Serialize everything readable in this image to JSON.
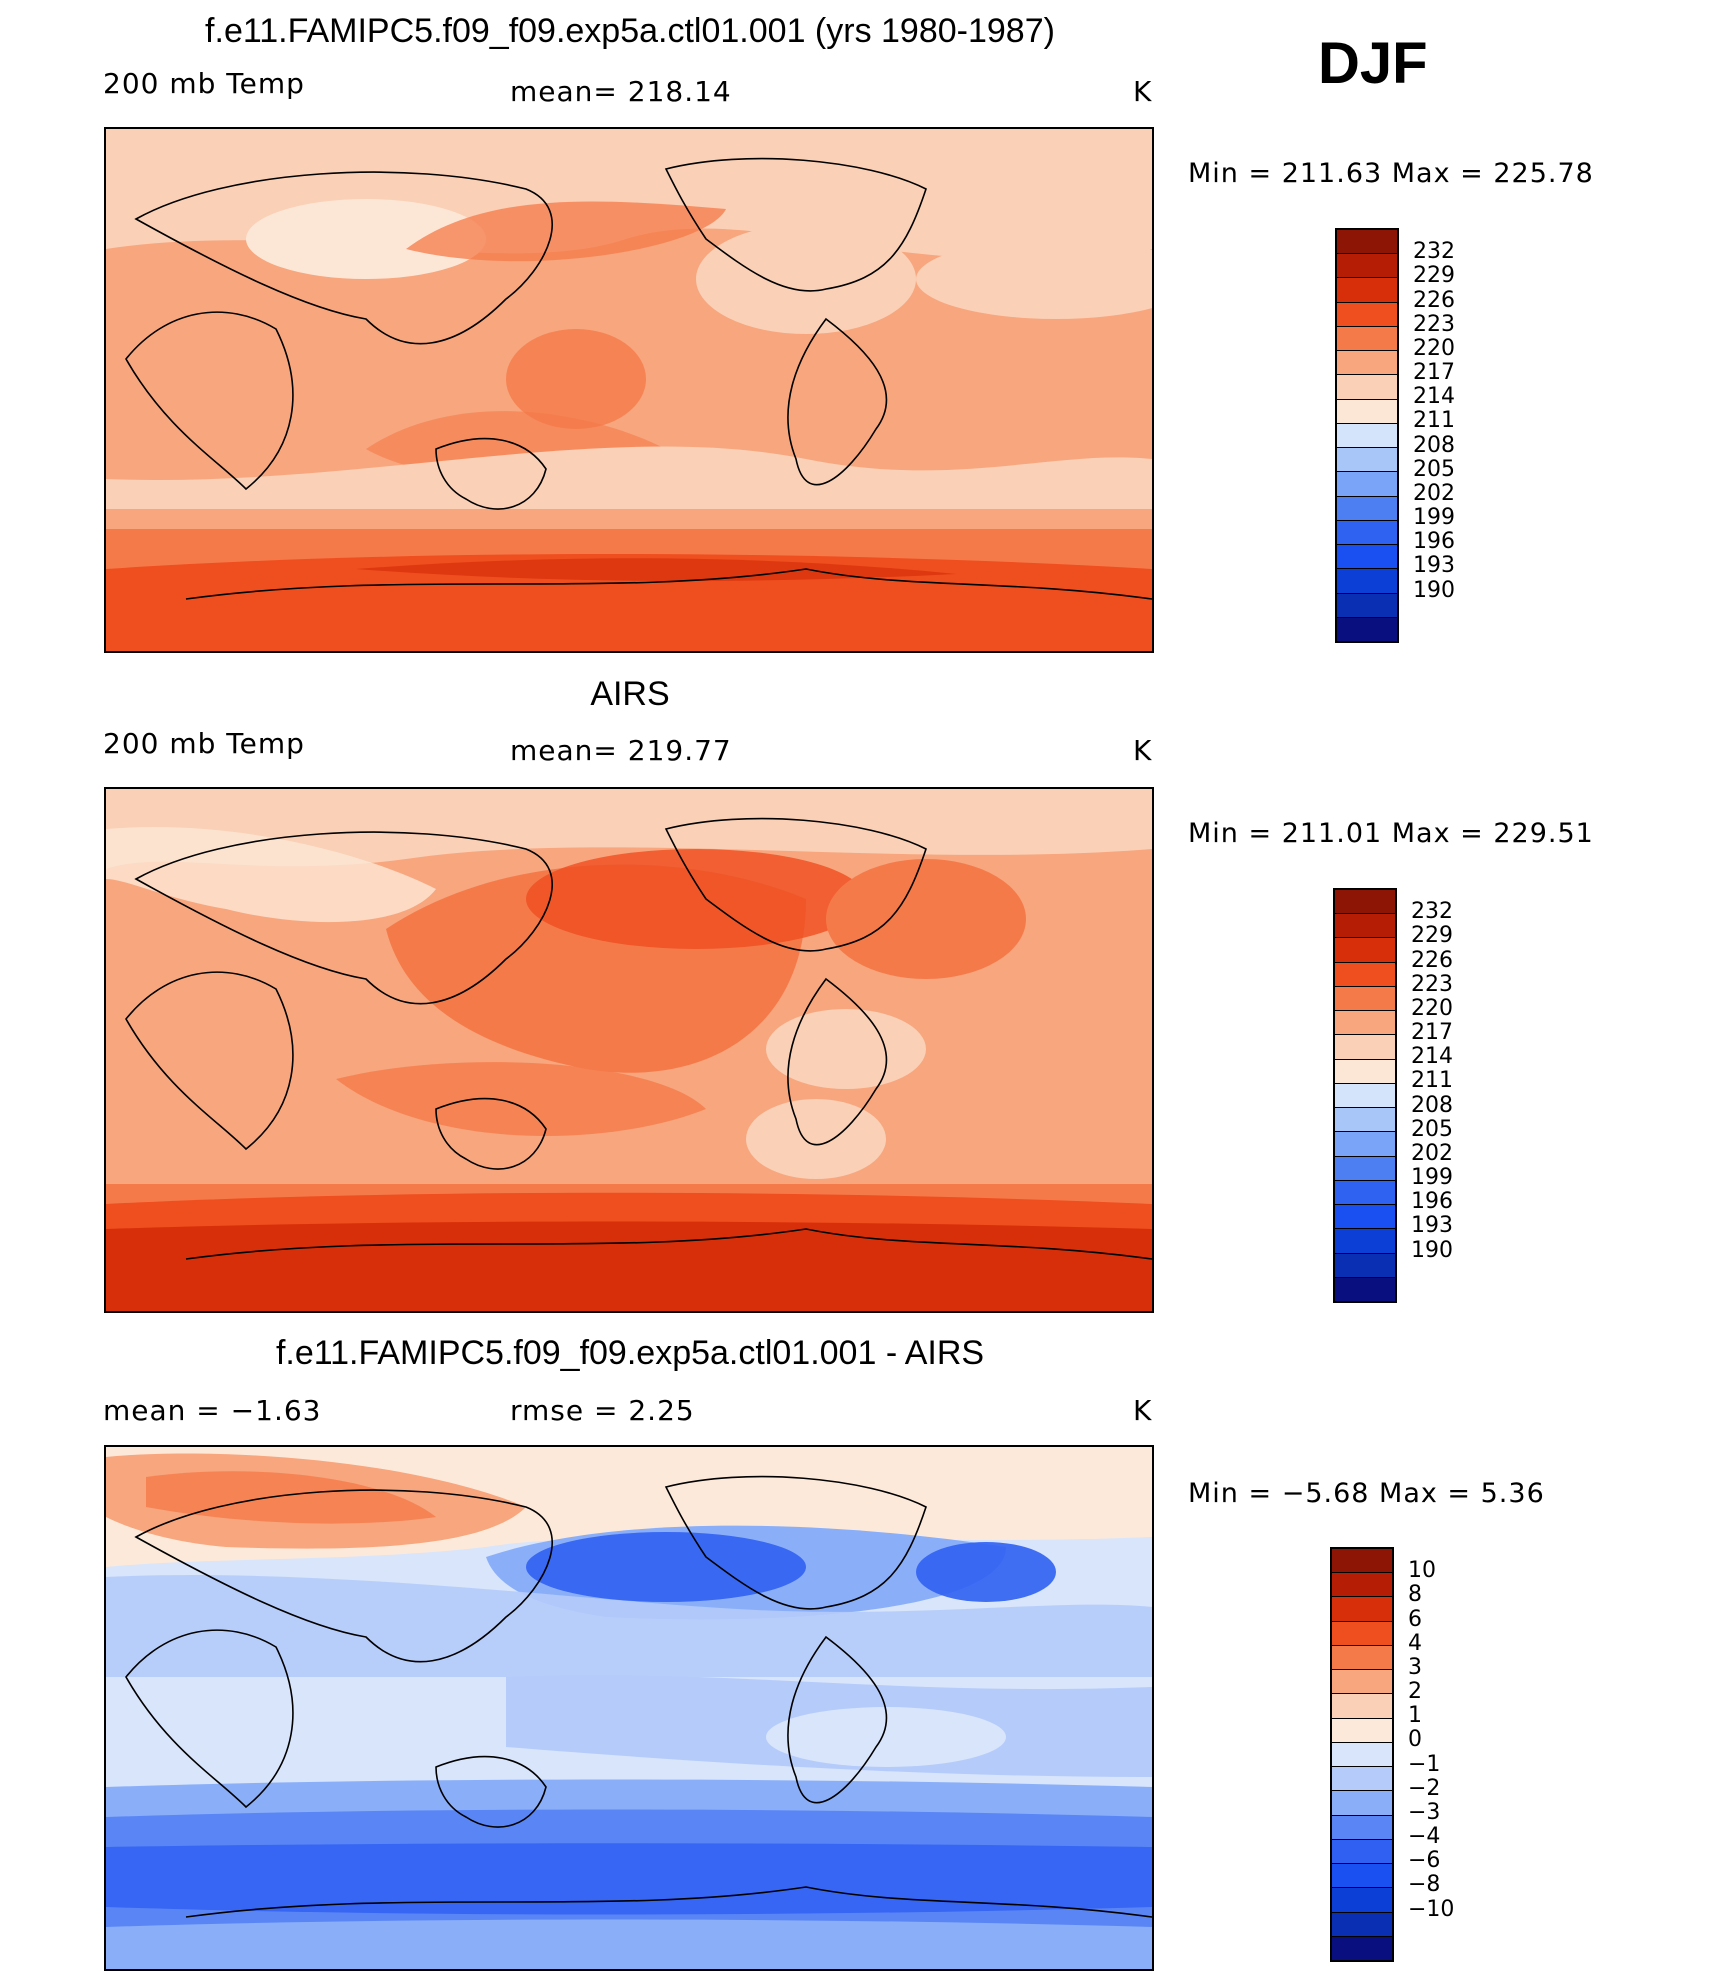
{
  "season_label": "DJF",
  "colors": {
    "temp_levels": [
      "#0a0f80",
      "#0a2fb3",
      "#0b3fd6",
      "#1a4ff2",
      "#2f62f0",
      "#4d7ff2",
      "#7aa4f7",
      "#a9c6f9",
      "#d4e5fb",
      "#fce7d6",
      "#fad0b6",
      "#f7a67e",
      "#f57a4a",
      "#ef4e1f",
      "#d62f0a",
      "#b51e05",
      "#8c1505"
    ],
    "diff_levels": [
      "#0a0f80",
      "#0a2fb3",
      "#0b3fd6",
      "#1a4ff2",
      "#3060f2",
      "#5a86f5",
      "#8aaff8",
      "#b5cbfa",
      "#d8e5fb",
      "#fde9d9",
      "#fad0b6",
      "#f7a67e",
      "#f57a4a",
      "#ef4e1f",
      "#d62f0a",
      "#b51e05",
      "#8c1505"
    ]
  },
  "chart_data": [
    {
      "type": "heatmap",
      "title": "f.e11.FAMIPC5.f09_f09.exp5a.ctl01.001 (yrs 1980-1987)",
      "left_label": "200 mb Temp",
      "center_label": "mean=  218.14",
      "units": "K",
      "minmax_label": "Min  =  211.63  Max  =  225.78",
      "mean": 218.14,
      "min": 211.63,
      "max": 225.78,
      "colorbar_ticks": [
        "232",
        "229",
        "226",
        "223",
        "220",
        "217",
        "214",
        "211",
        "208",
        "205",
        "202",
        "199",
        "196",
        "193",
        "190"
      ]
    },
    {
      "type": "heatmap",
      "title": "AIRS",
      "left_label": "200 mb Temp",
      "center_label": "mean=  219.77",
      "units": "K",
      "minmax_label": "Min  =  211.01  Max  =  229.51",
      "mean": 219.77,
      "min": 211.01,
      "max": 229.51,
      "colorbar_ticks": [
        "232",
        "229",
        "226",
        "223",
        "220",
        "217",
        "214",
        "211",
        "208",
        "205",
        "202",
        "199",
        "196",
        "193",
        "190"
      ]
    },
    {
      "type": "heatmap",
      "title": "f.e11.FAMIPC5.f09_f09.exp5a.ctl01.001 - AIRS",
      "left_label": "mean  =    −1.63",
      "center_label": "rmse  =     2.25",
      "units": "K",
      "minmax_label": "Min  =    −5.68  Max  =       5.36",
      "mean": -1.63,
      "rmse": 2.25,
      "min": -5.68,
      "max": 5.36,
      "colorbar_ticks": [
        "10",
        "8",
        "6",
        "4",
        "3",
        "2",
        "1",
        "0",
        "−1",
        "−2",
        "−3",
        "−4",
        "−6",
        "−8",
        "−10"
      ]
    }
  ]
}
